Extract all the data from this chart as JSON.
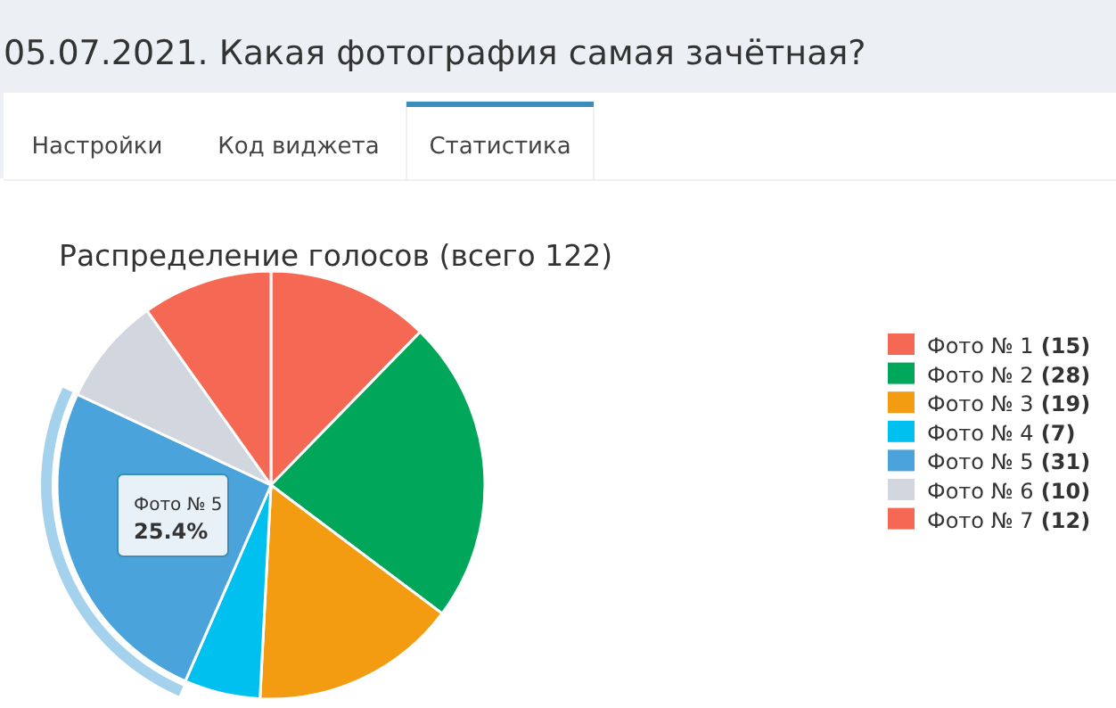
{
  "chart_data": {
    "type": "pie",
    "title": "Распределение голосов (всего 122)",
    "categories": [
      "Фото № 1",
      "Фото № 2",
      "Фото № 3",
      "Фото № 4",
      "Фото № 5",
      "Фото № 6",
      "Фото № 7"
    ],
    "values": [
      15,
      28,
      19,
      7,
      31,
      10,
      12
    ],
    "colors": [
      "#f56954",
      "#00a65a",
      "#f39c12",
      "#00c0ef",
      "#4aa3da",
      "#d2d6de",
      "#f56954"
    ],
    "value_labels": [
      "(15)",
      "(28)",
      "(19)",
      "(7)",
      "(31)",
      "(10)",
      "(12)"
    ],
    "legend": "right",
    "annotations": [
      "05.07.2021. Какая фотография самая зачётная?",
      "Настройки",
      "Код виджета",
      "Статистика",
      {
        "text": "Фото № 5\n25.4%",
        "x": "Фото № 5"
      }
    ]
  }
}
